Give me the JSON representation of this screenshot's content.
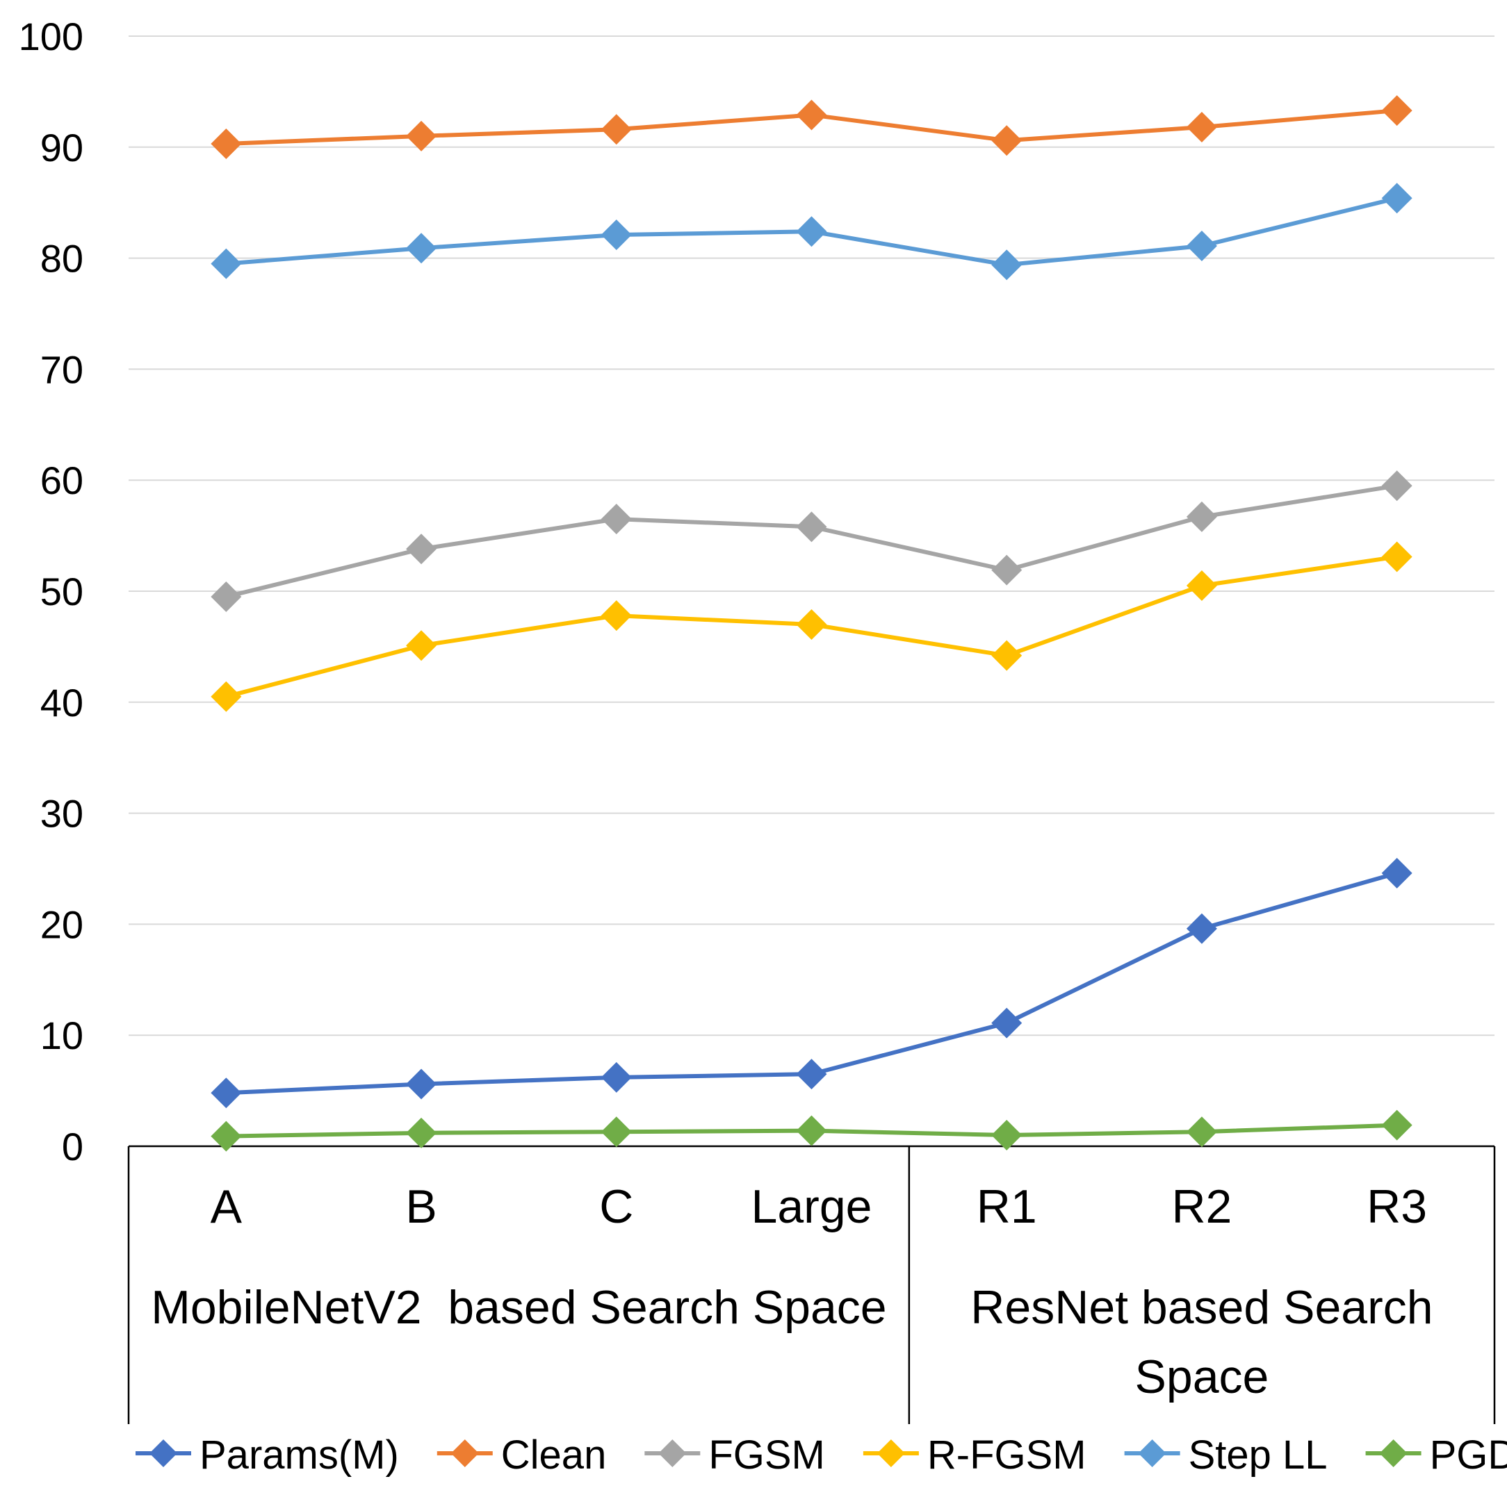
{
  "chart_data": {
    "type": "line",
    "categories": [
      "A",
      "B",
      "C",
      "Large",
      "R1",
      "R2",
      "R3"
    ],
    "groups": [
      {
        "label": "MobileNetV2  based Search Space",
        "categories": [
          "A",
          "B",
          "C",
          "Large"
        ]
      },
      {
        "label": "ResNet based Search Space",
        "categories": [
          "R1",
          "R2",
          "R3"
        ]
      }
    ],
    "ylim": [
      0,
      100
    ],
    "yticks": [
      0,
      10,
      20,
      30,
      40,
      50,
      60,
      70,
      80,
      90,
      100
    ],
    "grid": true,
    "legend_position": "bottom",
    "series": [
      {
        "name": "Params(M)",
        "color": "#4472C4",
        "values": [
          4.8,
          5.6,
          6.2,
          6.5,
          11.1,
          19.6,
          24.6
        ]
      },
      {
        "name": "Clean",
        "color": "#ED7D31",
        "values": [
          90.3,
          91.0,
          91.6,
          92.9,
          90.6,
          91.8,
          93.3
        ]
      },
      {
        "name": "FGSM",
        "color": "#A5A5A5",
        "values": [
          49.5,
          53.8,
          56.5,
          55.8,
          51.9,
          56.7,
          59.5
        ]
      },
      {
        "name": "R-FGSM",
        "color": "#FFC000",
        "values": [
          40.5,
          45.1,
          47.8,
          47.0,
          44.2,
          50.5,
          53.1
        ]
      },
      {
        "name": "Step LL",
        "color": "#5B9BD5",
        "values": [
          79.5,
          80.9,
          82.1,
          82.4,
          79.4,
          81.1,
          85.4
        ]
      },
      {
        "name": "PGD",
        "color": "#70AD47",
        "values": [
          0.9,
          1.2,
          1.3,
          1.4,
          1.0,
          1.3,
          1.9
        ]
      }
    ]
  }
}
